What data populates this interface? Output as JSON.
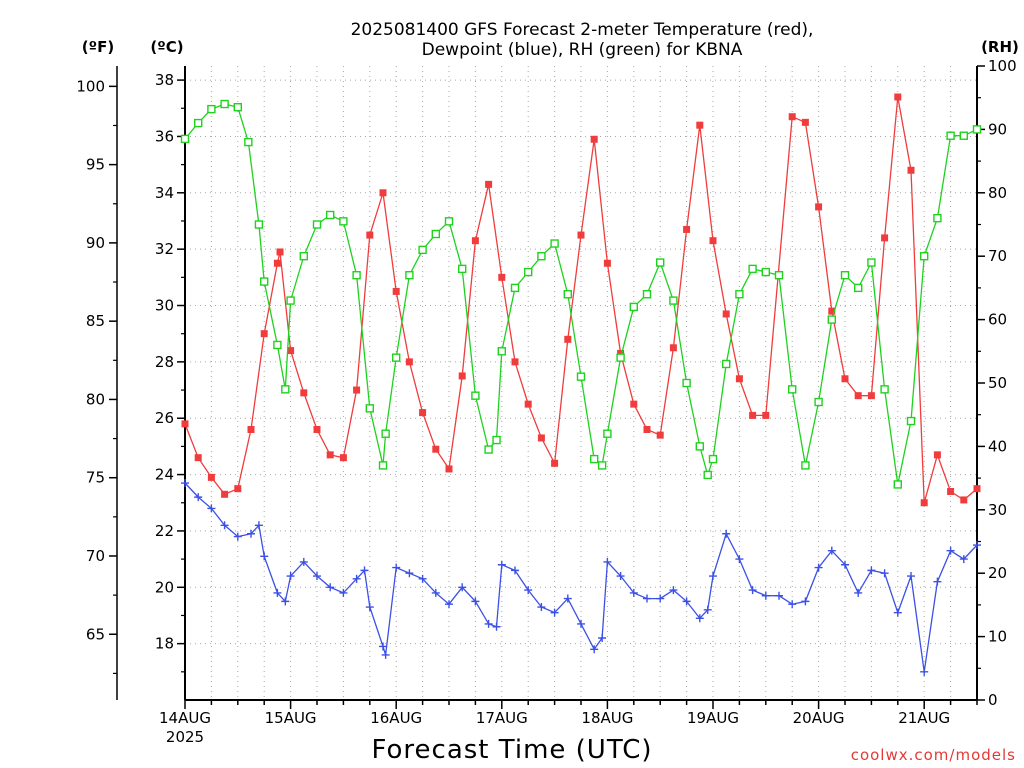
{
  "chart_data": {
    "type": "line",
    "title": [
      "2025081400 GFS Forecast 2-meter Temperature (red),",
      "Dewpoint (blue), RH (green) for KBNA"
    ],
    "xlabel": "Forecast Time (UTC)",
    "credit": "coolwx.com/models",
    "y_units": {
      "fahrenheit": "(ºF)",
      "celsius": "(ºC)",
      "rh": "(RH)"
    },
    "x_axis": {
      "range_days": [
        0,
        7.5
      ],
      "ticks": [
        {
          "day": 0,
          "label": "14AUG",
          "sublabel": "2025"
        },
        {
          "day": 1,
          "label": "15AUG"
        },
        {
          "day": 2,
          "label": "16AUG"
        },
        {
          "day": 3,
          "label": "17AUG"
        },
        {
          "day": 4,
          "label": "18AUG"
        },
        {
          "day": 5,
          "label": "19AUG"
        },
        {
          "day": 6,
          "label": "20AUG"
        },
        {
          "day": 7,
          "label": "21AUG"
        }
      ]
    },
    "celsius_axis": {
      "range": [
        16,
        38.5
      ],
      "ticks": [
        "18",
        "20",
        "22",
        "24",
        "26",
        "28",
        "30",
        "32",
        "34",
        "36",
        "38"
      ]
    },
    "fahrenheit_axis": {
      "ticks": [
        "65",
        "70",
        "75",
        "80",
        "85",
        "90",
        "95",
        "100"
      ]
    },
    "rh_axis": {
      "range": [
        0,
        100
      ],
      "ticks": [
        "0",
        "10",
        "20",
        "30",
        "40",
        "50",
        "60",
        "70",
        "80",
        "90",
        "100"
      ]
    },
    "grid": true,
    "series": [
      {
        "name": "Temperature",
        "color": "#f03c3c",
        "marker": "filled-square",
        "axis": "celsius",
        "points": [
          [
            0,
            25.8
          ],
          [
            0.125,
            24.6
          ],
          [
            0.25,
            23.9
          ],
          [
            0.375,
            23.3
          ],
          [
            0.5,
            23.5
          ],
          [
            0.625,
            25.6
          ],
          [
            0.75,
            29
          ],
          [
            0.875,
            31.5
          ],
          [
            0.9,
            31.9
          ],
          [
            1,
            28.4
          ],
          [
            1.125,
            26.9
          ],
          [
            1.25,
            25.6
          ],
          [
            1.375,
            24.7
          ],
          [
            1.5,
            24.6
          ],
          [
            1.625,
            27
          ],
          [
            1.75,
            32.5
          ],
          [
            1.875,
            34
          ],
          [
            2,
            30.5
          ],
          [
            2.125,
            28
          ],
          [
            2.25,
            26.2
          ],
          [
            2.375,
            24.9
          ],
          [
            2.5,
            24.2
          ],
          [
            2.625,
            27.5
          ],
          [
            2.75,
            32.3
          ],
          [
            2.875,
            34.3
          ],
          [
            3,
            31
          ],
          [
            3.125,
            28
          ],
          [
            3.25,
            26.5
          ],
          [
            3.375,
            25.3
          ],
          [
            3.5,
            24.4
          ],
          [
            3.625,
            28.8
          ],
          [
            3.75,
            32.5
          ],
          [
            3.875,
            35.9
          ],
          [
            4,
            31.5
          ],
          [
            4.125,
            28.3
          ],
          [
            4.25,
            26.5
          ],
          [
            4.375,
            25.6
          ],
          [
            4.5,
            25.4
          ],
          [
            4.625,
            28.5
          ],
          [
            4.75,
            32.7
          ],
          [
            4.875,
            36.4
          ],
          [
            5,
            32.3
          ],
          [
            5.125,
            29.7
          ],
          [
            5.25,
            27.4
          ],
          [
            5.375,
            26.1
          ],
          [
            5.5,
            26.1
          ],
          [
            5.75,
            36.7
          ],
          [
            5.875,
            36.5
          ],
          [
            6,
            33.5
          ],
          [
            6.125,
            29.8
          ],
          [
            6.25,
            27.4
          ],
          [
            6.375,
            26.8
          ],
          [
            6.5,
            26.8
          ],
          [
            6.625,
            32.4
          ],
          [
            6.75,
            37.4
          ],
          [
            6.875,
            34.8
          ],
          [
            7,
            23
          ],
          [
            7.125,
            24.7
          ],
          [
            7.25,
            23.4
          ],
          [
            7.375,
            23.1
          ],
          [
            7.5,
            23.5
          ]
        ]
      },
      {
        "name": "Dewpoint",
        "color": "#3c50e6",
        "marker": "plus",
        "axis": "celsius",
        "points": [
          [
            0,
            23.7
          ],
          [
            0.125,
            23.2
          ],
          [
            0.25,
            22.8
          ],
          [
            0.375,
            22.2
          ],
          [
            0.5,
            21.8
          ],
          [
            0.625,
            21.9
          ],
          [
            0.7,
            22.2
          ],
          [
            0.75,
            21.1
          ],
          [
            0.875,
            19.8
          ],
          [
            0.95,
            19.5
          ],
          [
            1,
            20.4
          ],
          [
            1.125,
            20.9
          ],
          [
            1.25,
            20.4
          ],
          [
            1.375,
            20
          ],
          [
            1.5,
            19.8
          ],
          [
            1.625,
            20.3
          ],
          [
            1.7,
            20.6
          ],
          [
            1.75,
            19.3
          ],
          [
            1.875,
            17.9
          ],
          [
            1.9,
            17.6
          ],
          [
            2,
            20.7
          ],
          [
            2.125,
            20.5
          ],
          [
            2.25,
            20.3
          ],
          [
            2.375,
            19.8
          ],
          [
            2.5,
            19.4
          ],
          [
            2.625,
            20
          ],
          [
            2.75,
            19.5
          ],
          [
            2.875,
            18.7
          ],
          [
            2.95,
            18.6
          ],
          [
            3,
            20.8
          ],
          [
            3.125,
            20.6
          ],
          [
            3.25,
            19.9
          ],
          [
            3.375,
            19.3
          ],
          [
            3.5,
            19.1
          ],
          [
            3.625,
            19.6
          ],
          [
            3.75,
            18.7
          ],
          [
            3.875,
            17.8
          ],
          [
            3.95,
            18.2
          ],
          [
            4,
            20.9
          ],
          [
            4.125,
            20.4
          ],
          [
            4.25,
            19.8
          ],
          [
            4.375,
            19.6
          ],
          [
            4.5,
            19.6
          ],
          [
            4.625,
            19.9
          ],
          [
            4.75,
            19.5
          ],
          [
            4.875,
            18.9
          ],
          [
            4.95,
            19.2
          ],
          [
            5,
            20.4
          ],
          [
            5.125,
            21.9
          ],
          [
            5.25,
            21
          ],
          [
            5.375,
            19.9
          ],
          [
            5.5,
            19.7
          ],
          [
            5.625,
            19.7
          ],
          [
            5.75,
            19.4
          ],
          [
            5.875,
            19.5
          ],
          [
            6,
            20.7
          ],
          [
            6.125,
            21.3
          ],
          [
            6.25,
            20.8
          ],
          [
            6.375,
            19.8
          ],
          [
            6.5,
            20.6
          ],
          [
            6.625,
            20.5
          ],
          [
            6.75,
            19.1
          ],
          [
            6.875,
            20.4
          ],
          [
            7,
            17
          ],
          [
            7.125,
            20.2
          ],
          [
            7.25,
            21.3
          ],
          [
            7.375,
            21
          ],
          [
            7.5,
            21.5
          ]
        ]
      },
      {
        "name": "RH",
        "color": "#1ed21e",
        "marker": "open-square",
        "axis": "rh",
        "points": [
          [
            0,
            88.5
          ],
          [
            0.125,
            91
          ],
          [
            0.25,
            93.2
          ],
          [
            0.375,
            94
          ],
          [
            0.5,
            93.5
          ],
          [
            0.6,
            88
          ],
          [
            0.7,
            75
          ],
          [
            0.75,
            66
          ],
          [
            0.875,
            56
          ],
          [
            0.95,
            49
          ],
          [
            1,
            63
          ],
          [
            1.125,
            70
          ],
          [
            1.25,
            75
          ],
          [
            1.375,
            76.5
          ],
          [
            1.5,
            75.5
          ],
          [
            1.625,
            67
          ],
          [
            1.75,
            46
          ],
          [
            1.875,
            37
          ],
          [
            1.9,
            42
          ],
          [
            2,
            54
          ],
          [
            2.125,
            67
          ],
          [
            2.25,
            71
          ],
          [
            2.375,
            73.5
          ],
          [
            2.5,
            75.5
          ],
          [
            2.625,
            68
          ],
          [
            2.75,
            48
          ],
          [
            2.875,
            39.5
          ],
          [
            2.95,
            41
          ],
          [
            3,
            55
          ],
          [
            3.125,
            65
          ],
          [
            3.25,
            67.5
          ],
          [
            3.375,
            70
          ],
          [
            3.5,
            72
          ],
          [
            3.625,
            64
          ],
          [
            3.75,
            51
          ],
          [
            3.875,
            38
          ],
          [
            3.95,
            37
          ],
          [
            4,
            42
          ],
          [
            4.125,
            54
          ],
          [
            4.25,
            62
          ],
          [
            4.375,
            64
          ],
          [
            4.5,
            69
          ],
          [
            4.625,
            63
          ],
          [
            4.75,
            50
          ],
          [
            4.875,
            40
          ],
          [
            4.95,
            35.5
          ],
          [
            5,
            38
          ],
          [
            5.125,
            53
          ],
          [
            5.25,
            64
          ],
          [
            5.375,
            68
          ],
          [
            5.5,
            67.5
          ],
          [
            5.625,
            67
          ],
          [
            5.75,
            49
          ],
          [
            5.875,
            37
          ],
          [
            6,
            47
          ],
          [
            6.125,
            60
          ],
          [
            6.25,
            67
          ],
          [
            6.375,
            65
          ],
          [
            6.5,
            69
          ],
          [
            6.625,
            49
          ],
          [
            6.75,
            34
          ],
          [
            6.875,
            44
          ],
          [
            7,
            70
          ],
          [
            7.125,
            76
          ],
          [
            7.25,
            89
          ],
          [
            7.375,
            89
          ],
          [
            7.5,
            90
          ]
        ]
      }
    ]
  }
}
